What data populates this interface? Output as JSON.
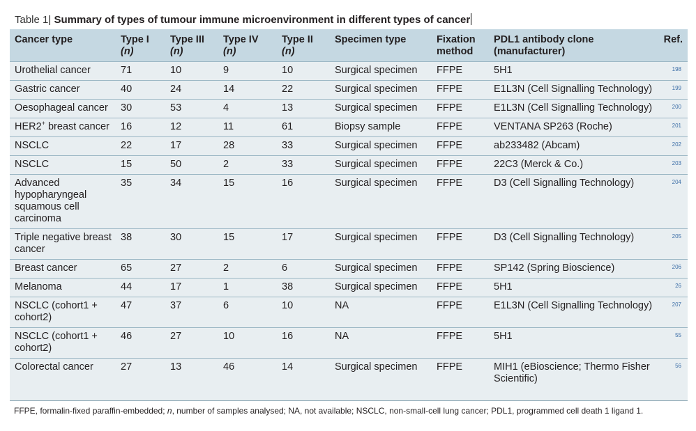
{
  "caption": {
    "label": "Table 1",
    "separator": "|",
    "title": "Summary of types of tumour immune microenvironment in different types of cancer"
  },
  "headers": {
    "cancer_type": "Cancer type",
    "type1": "Type I",
    "type3": "Type III",
    "type4": "Type IV",
    "type2": "Type II",
    "n": "(n)",
    "specimen": "Specimen type",
    "fixation_1": "Fixation",
    "fixation_2": "method",
    "antibody_1": "PDL1 antibody clone",
    "antibody_2": "(manufacturer)",
    "ref": "Ref."
  },
  "rows": [
    {
      "cancer": "Urothelial cancer",
      "t1": "71",
      "t3": "10",
      "t4": "9",
      "t2": "10",
      "specimen": "Surgical specimen",
      "fixation": "FFPE",
      "antibody": "5H1",
      "ref": "198"
    },
    {
      "cancer": "Gastric cancer",
      "t1": "40",
      "t3": "24",
      "t4": "14",
      "t2": "22",
      "specimen": "Surgical specimen",
      "fixation": "FFPE",
      "antibody": "E1L3N (Cell Signalling Technology)",
      "ref": "199"
    },
    {
      "cancer": "Oesophageal cancer",
      "t1": "30",
      "t3": "53",
      "t4": "4",
      "t2": "13",
      "specimen": "Surgical specimen",
      "fixation": "FFPE",
      "antibody": "E1L3N (Cell Signalling Technology)",
      "ref": "200"
    },
    {
      "cancer": "HER2",
      "cancer_sup": "+",
      "cancer_suffix": " breast cancer",
      "t1": "16",
      "t3": "12",
      "t4": "11",
      "t2": "61",
      "specimen": "Biopsy sample",
      "fixation": "FFPE",
      "antibody": "VENTANA SP263 (Roche)",
      "ref": "201"
    },
    {
      "cancer": "NSCLC",
      "t1": "22",
      "t3": "17",
      "t4": "28",
      "t2": "33",
      "specimen": "Surgical specimen",
      "fixation": "FFPE",
      "antibody": "ab233482 (Abcam)",
      "ref": "202"
    },
    {
      "cancer": "NSCLC",
      "t1": "15",
      "t3": "50",
      "t4": "2",
      "t2": "33",
      "specimen": "Surgical specimen",
      "fixation": "FFPE",
      "antibody": "22C3 (Merck & Co.)",
      "ref": "203"
    },
    {
      "cancer": "Advanced hypopharyngeal squamous cell carcinoma",
      "t1": "35",
      "t3": "34",
      "t4": "15",
      "t2": "16",
      "specimen": "Surgical specimen",
      "fixation": "FFPE",
      "antibody": "D3 (Cell Signalling Technology)",
      "ref": "204"
    },
    {
      "cancer": "Triple negative breast cancer",
      "t1": "38",
      "t3": "30",
      "t4": "15",
      "t2": "17",
      "specimen": "Surgical specimen",
      "fixation": "FFPE",
      "antibody": "D3 (Cell Signalling Technology)",
      "ref": "205"
    },
    {
      "cancer": "Breast cancer",
      "t1": "65",
      "t3": "27",
      "t4": "2",
      "t2": "6",
      "specimen": "Surgical specimen",
      "fixation": "FFPE",
      "antibody": "SP142 (Spring Bioscience)",
      "ref": "206"
    },
    {
      "cancer": "Melanoma",
      "t1": "44",
      "t3": "17",
      "t4": "1",
      "t2": "38",
      "specimen": "Surgical specimen",
      "fixation": "FFPE",
      "antibody": "5H1",
      "ref": "26"
    },
    {
      "cancer": "NSCLC (cohort1 + cohort2)",
      "t1": "47",
      "t3": "37",
      "t4": "6",
      "t2": "10",
      "specimen": "NA",
      "fixation": "FFPE",
      "antibody": "E1L3N (Cell Signalling Technology)",
      "ref": "207"
    },
    {
      "cancer": "NSCLC (cohort1 + cohort2)",
      "t1": "46",
      "t3": "27",
      "t4": "10",
      "t2": "16",
      "specimen": "NA",
      "fixation": "FFPE",
      "antibody": "5H1",
      "ref": "55"
    },
    {
      "cancer": "Colorectal cancer",
      "t1": "27",
      "t3": "13",
      "t4": "46",
      "t2": "14",
      "specimen": "Surgical specimen",
      "fixation": "FFPE",
      "antibody": "MIH1 (eBioscience; Thermo Fisher Scientific)",
      "ref": "56"
    }
  ],
  "footnote": {
    "part1": "FFPE, formalin-fixed paraffin-embedded; ",
    "n": "n",
    "part2": ", number of samples analysed; NA, not available; NSCLC, non-small-cell lung cancer; PDL1, programmed cell death 1 ligand 1."
  }
}
